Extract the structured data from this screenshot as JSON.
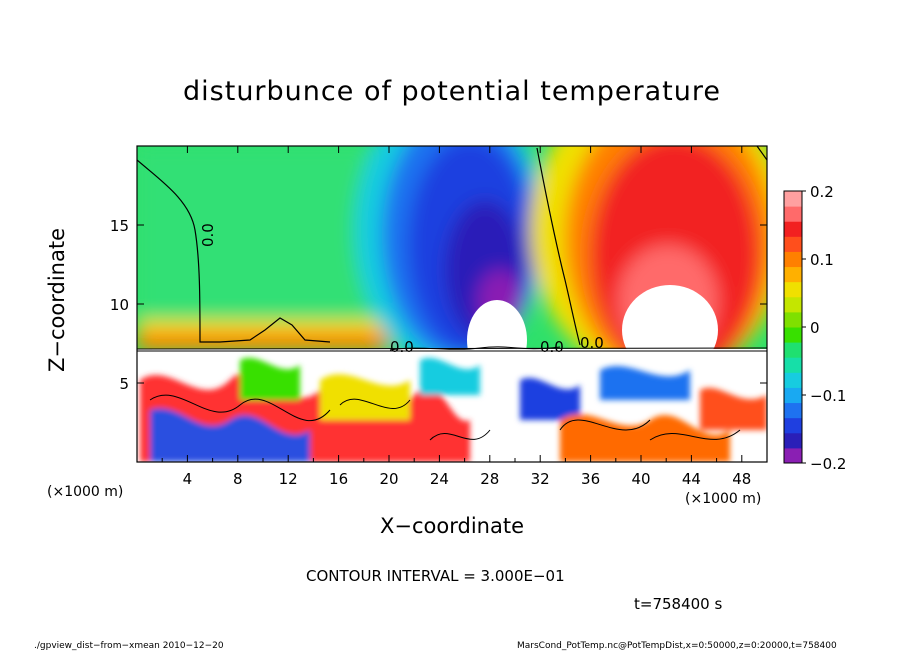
{
  "chart_data": {
    "type": "heatmap",
    "title": "disturbunce of potential temperature",
    "xlabel": "X−coordinate",
    "ylabel": "Z−coordinate",
    "x_unit_left": "(×1000 m)",
    "x_unit_right": "(×1000 m)",
    "xlim": [
      0,
      50
    ],
    "ylim": [
      0,
      20
    ],
    "x_ticks": [
      4,
      8,
      12,
      16,
      20,
      24,
      28,
      32,
      36,
      40,
      44,
      48
    ],
    "y_ticks": [
      5,
      10,
      15
    ],
    "colorbar": {
      "range": [
        -0.2,
        0.2
      ],
      "tick_values": [
        0.2,
        0.1,
        0,
        -0.1,
        -0.2
      ],
      "tick_labels": [
        "0.2",
        "0.1",
        "0",
        "−0.1",
        "−0.2"
      ],
      "colors": [
        "#8a1fb3",
        "#2a1fb8",
        "#1f3fe0",
        "#1e72f0",
        "#19a9f2",
        "#17cce0",
        "#16dfa8",
        "#1fe070",
        "#38e000",
        "#7fe000",
        "#c4e600",
        "#f0e000",
        "#ffb000",
        "#ff8000",
        "#ff4f1c",
        "#f22020",
        "#ff6a6a",
        "#ffa0a0"
      ]
    },
    "contour_interval_text": "CONTOUR INTERVAL = 3.000E−01",
    "zero_contour_labels": [
      "0.0",
      "0.0",
      "0.0",
      "0.0"
    ]
  },
  "annotations": {
    "time_label": "t=758400 s",
    "footer_left": "./gpview_dist−from−xmean   2010−12−20",
    "footer_right": "MarsCond_PotTemp.nc@PotTempDist,x=0:50000,z=0:20000,t=758400"
  }
}
